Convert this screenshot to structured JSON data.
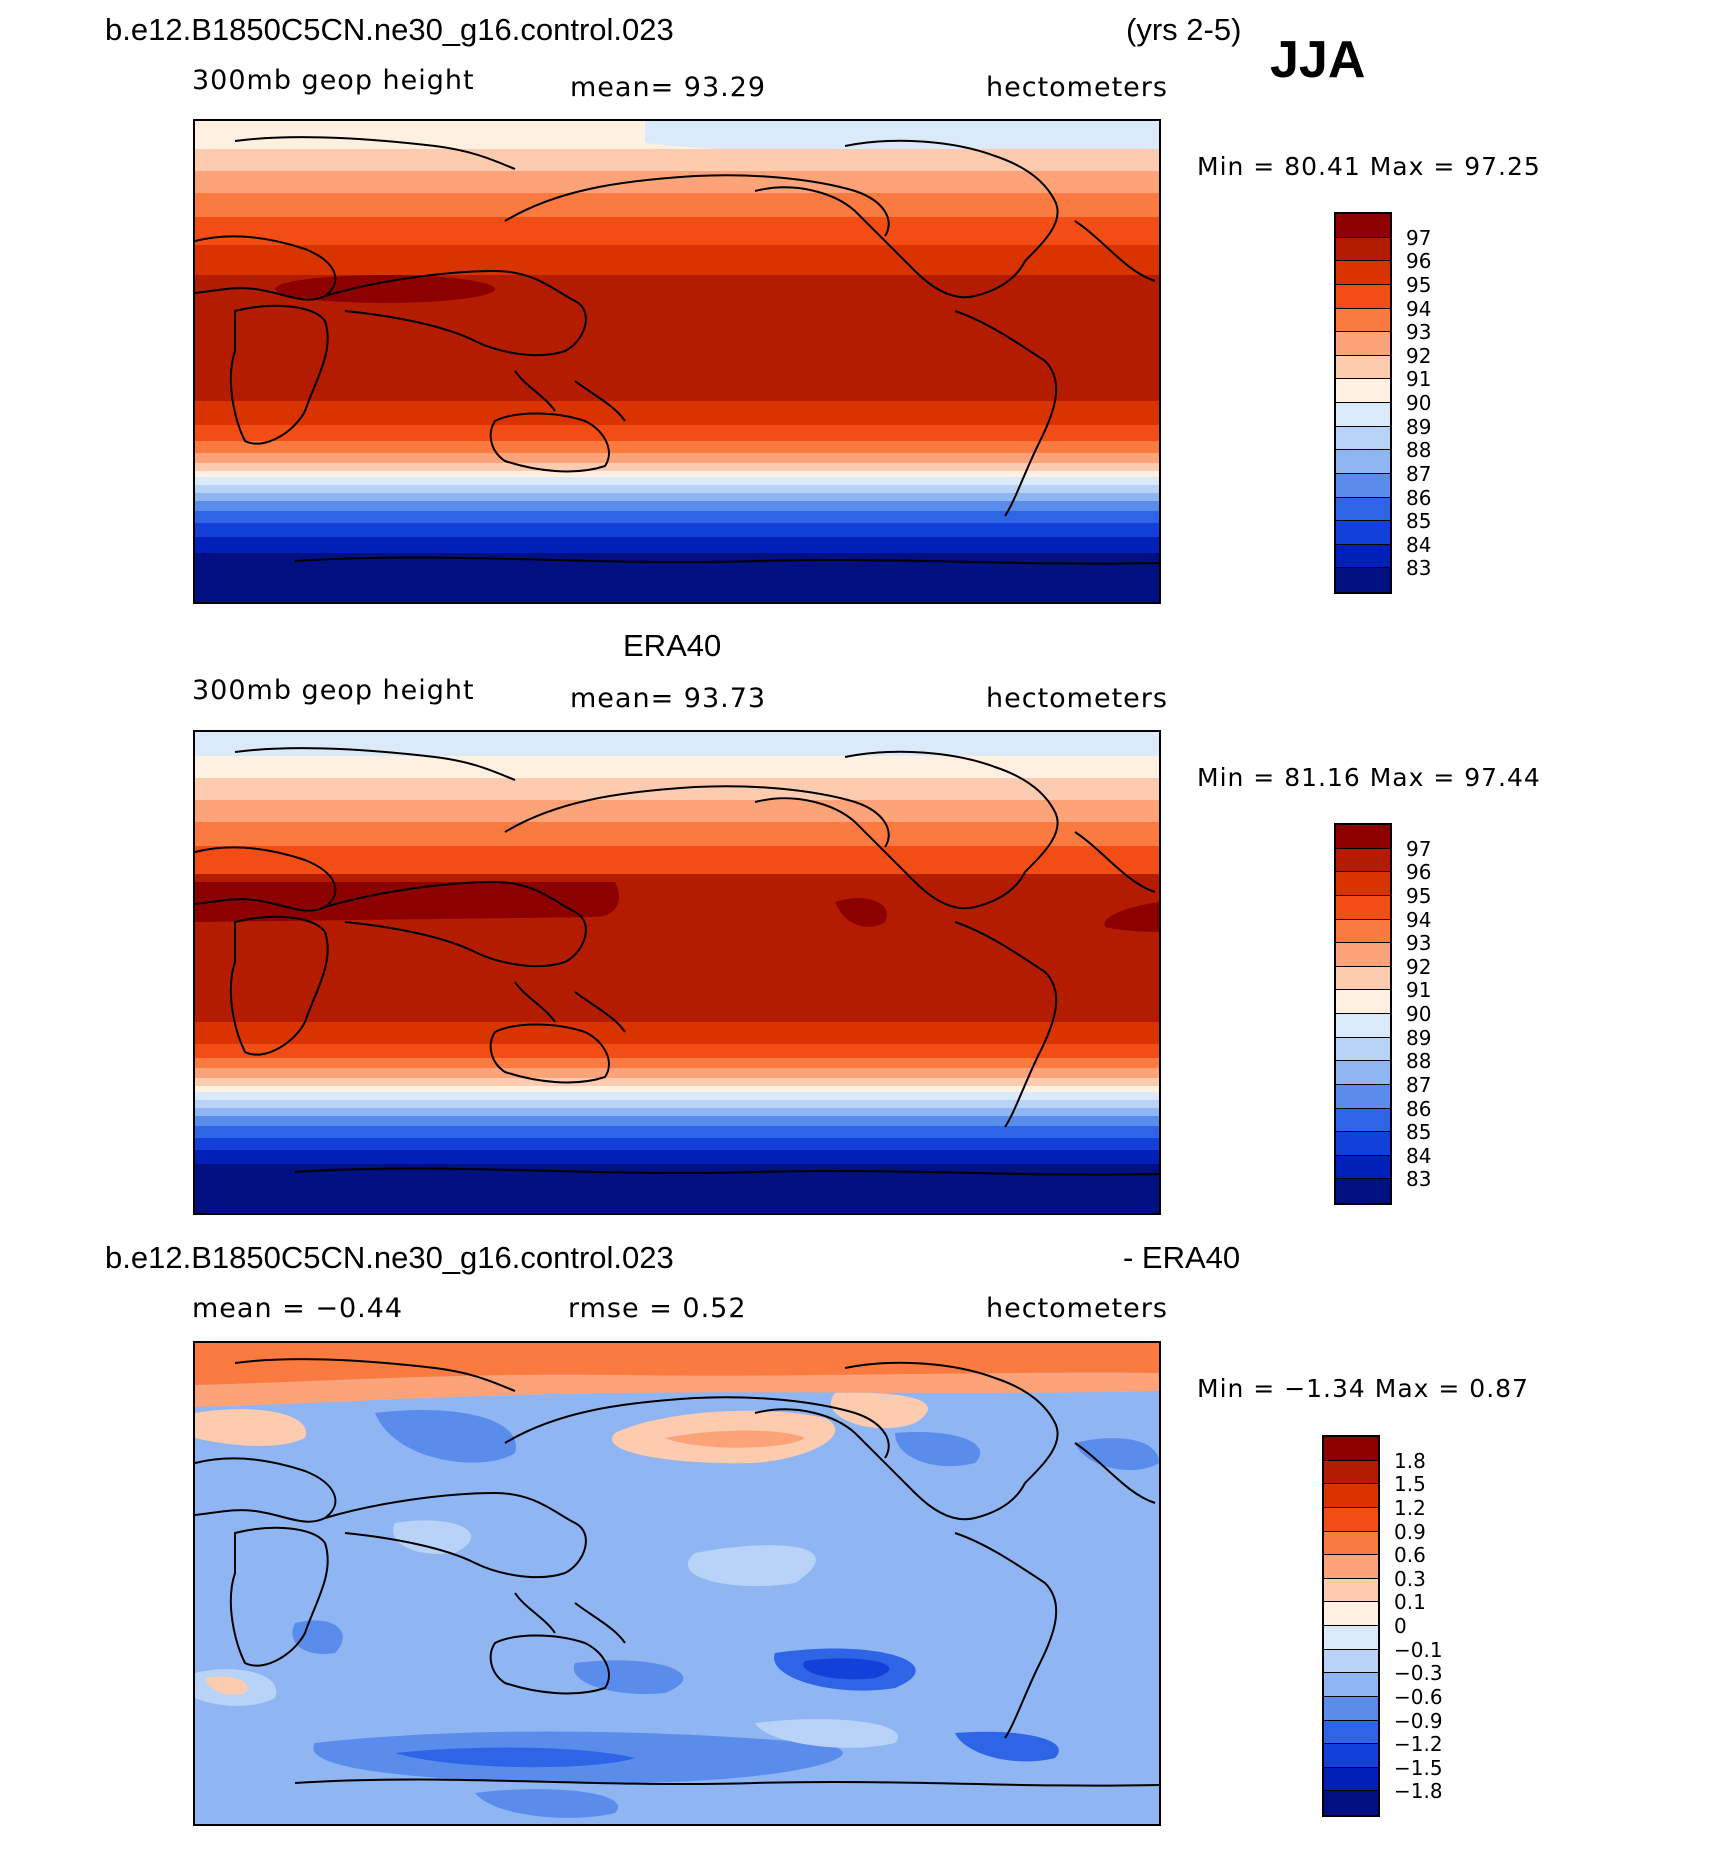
{
  "header": {
    "case_name": "b.e12.B1850C5CN.ne30_g16.control.023",
    "years": "(yrs 2-5)",
    "season": "JJA"
  },
  "panel1": {
    "field": "300mb geop height",
    "mean_text": "mean=   93.29",
    "units": "hectometers",
    "minmax": "Min =   80.41  Max =   97.25"
  },
  "panel2": {
    "title": "ERA40",
    "field": "300mb geop height",
    "mean_text": "mean=   93.73",
    "units": "hectometers",
    "minmax": "Min =   81.16  Max =   97.44"
  },
  "panel3": {
    "title_left": "b.e12.B1850C5CN.ne30_g16.control.023",
    "title_right": "- ERA40",
    "mean_text": "mean =   −0.44",
    "rmse_text": "rmse =    0.52",
    "units": "hectometers",
    "minmax": "Min =   −1.34  Max =    0.87"
  },
  "colorbar_abs": {
    "labels": [
      "97",
      "96",
      "95",
      "94",
      "93",
      "92",
      "91",
      "90",
      "89",
      "88",
      "87",
      "86",
      "85",
      "84",
      "83"
    ],
    "colors": [
      "#8c0000",
      "#b31c00",
      "#d93300",
      "#f24d14",
      "#fa7a40",
      "#fca37a",
      "#fdccb0",
      "#fff0e1",
      "#dbeafb",
      "#b8d3f7",
      "#8fb5f2",
      "#5a8cec",
      "#2e64e6",
      "#1240d9",
      "#0020b8",
      "#001080"
    ]
  },
  "colorbar_diff": {
    "labels": [
      "1.8",
      "1.5",
      "1.2",
      "0.9",
      "0.6",
      "0.3",
      "0.1",
      "0",
      "−0.1",
      "−0.3",
      "−0.6",
      "−0.9",
      "−1.2",
      "−1.5",
      "−1.8"
    ],
    "colors": [
      "#8c0000",
      "#b31c00",
      "#d93300",
      "#f24d14",
      "#fa7a40",
      "#fca37a",
      "#fdccb0",
      "#fff0e1",
      "#dbeafb",
      "#b8d3f7",
      "#8fb5f2",
      "#5a8cec",
      "#2e64e6",
      "#1240d9",
      "#0020b8",
      "#001080"
    ]
  }
}
